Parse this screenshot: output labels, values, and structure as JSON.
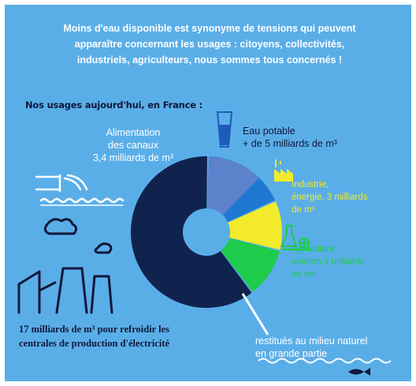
{
  "headline": {
    "line1": "Moins d'eau disponible est synonyme de tensions qui peuvent",
    "line2": "apparaître concernant les usages : citoyens, collectivités,",
    "line3": "industriels, agriculteurs, nous sommes tous concernés !"
  },
  "subtitle": "Nos usages aujourd'hui, en France :",
  "segments": {
    "canal": {
      "line1": "Alimentation",
      "line2": "des canaux",
      "line3": "3,4 milliards de m³",
      "color": "#5d82cc",
      "share": 0.121
    },
    "water": {
      "line1": "Eau potable",
      "line2": "+ de 5 milliards de m³",
      "color": "#1e78d2",
      "share": 0.179
    },
    "industry": {
      "line1": "Industrie,",
      "line2": "énergie, 3 milliards",
      "line3": "de m³",
      "color": "#f2ea2a",
      "share": 0.107
    },
    "agri": {
      "line1": "Agriculture",
      "line2": "environ 3 milliards",
      "line3": "de m³",
      "color": "#1ecb4a",
      "share": 0.107
    },
    "cooling": {
      "line1": "17 milliards de m³ pour refroidir les",
      "line2": "centrales de production d'électricité",
      "color": "#10234e",
      "share": 0.607
    }
  },
  "return_note": {
    "line1": "restitués au milieu naturel",
    "line2": "en grande partie"
  },
  "colors": {
    "background": "#5aaee8",
    "dark": "#10183a",
    "white": "#ffffff"
  },
  "icons": [
    "glass-of-water-icon",
    "factory-icon",
    "flask-icon",
    "canal-pipe-icon",
    "power-plant-icon",
    "fish-icon",
    "waves-icon"
  ]
}
